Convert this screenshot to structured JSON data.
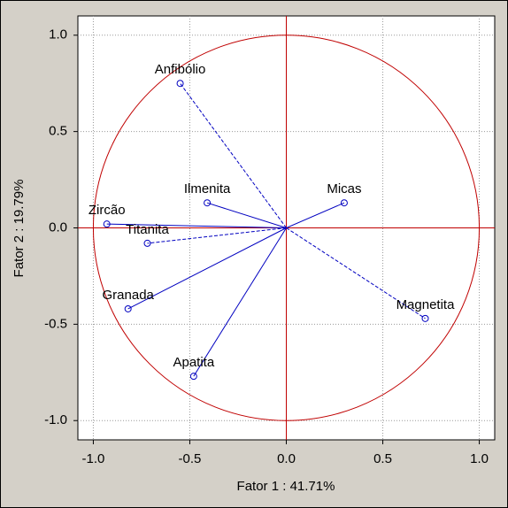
{
  "chart_data": {
    "type": "scatter",
    "xlabel": "Fator 1 : 41.71%",
    "ylabel": "Fator 2 : 19.79%",
    "labels": [
      "Anfibólio",
      "Ilmenita",
      "Micas",
      "Zircão",
      "Titanita",
      "Granada",
      "Magnetita",
      "Apatita"
    ],
    "x": [
      -0.55,
      -0.41,
      0.3,
      -0.93,
      -0.72,
      -0.82,
      0.72,
      -0.48
    ],
    "values": [
      0.75,
      0.13,
      0.13,
      0.02,
      -0.08,
      -0.42,
      -0.47,
      -0.77
    ],
    "dashed": [
      true,
      false,
      false,
      false,
      true,
      false,
      true,
      false
    ],
    "color": "#0000c0",
    "circle_color": "#c00000",
    "xlim": [
      -1.08,
      1.08
    ],
    "ylim": [
      -1.1,
      1.1
    ],
    "xticks": [
      {
        "value": -1,
        "label": "-1.0"
      },
      -0.5,
      {
        "value": 0,
        "label": "0.0"
      },
      0.5,
      {
        "value": 1,
        "label": "1.0"
      }
    ],
    "yticks": [
      {
        "value": -1,
        "label": "-1.0"
      },
      -0.5,
      {
        "value": 0,
        "label": "0.0"
      },
      0.5,
      {
        "value": 1,
        "label": "1.0"
      }
    ],
    "grid": true
  }
}
